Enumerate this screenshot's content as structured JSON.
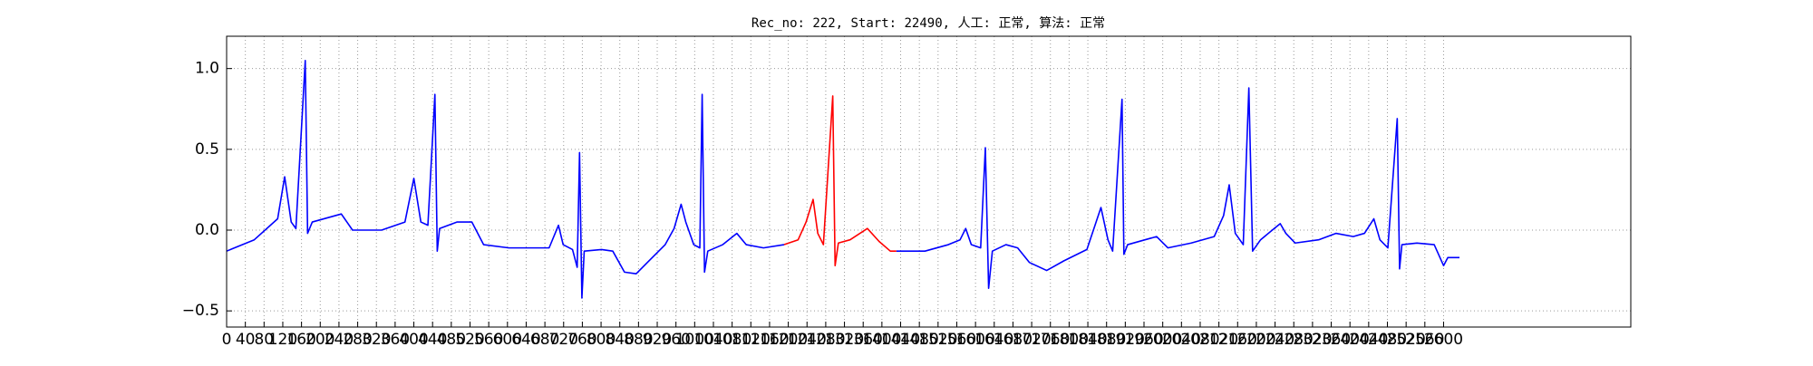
{
  "chart_data": {
    "type": "line",
    "title": "Rec_no: 222, Start: 22490, 人工: 正常, 算法: 正常",
    "xlim": [
      0,
      3000
    ],
    "ylim": [
      -0.6,
      1.2
    ],
    "xticks": [
      0,
      40,
      80,
      120,
      160,
      200,
      240,
      280,
      320,
      360,
      400,
      440,
      480,
      520,
      560,
      600,
      640,
      680,
      720,
      760,
      800,
      840,
      880,
      920,
      960,
      1000,
      1040,
      1080,
      1120,
      1160,
      1200,
      1240,
      1280,
      1320,
      1360,
      1400,
      1440,
      1480,
      1520,
      1560,
      1600,
      1640,
      1680,
      1720,
      1760,
      1800,
      1840,
      1880,
      1920,
      1960,
      2000,
      2040,
      2080,
      2120,
      2160,
      2200,
      2240,
      2280,
      2320,
      2360,
      2400,
      2440,
      2480,
      2520,
      2560,
      2600
    ],
    "yticks": [
      {
        "value": -0.5,
        "label": "−0.5"
      },
      {
        "value": 0,
        "label": "0.0"
      },
      {
        "value": 0.5,
        "label": "0.5"
      },
      {
        "value": 1,
        "label": "1.0"
      }
    ],
    "grid": true,
    "series": [
      {
        "color": "#0000ff",
        "x": [
          0,
          59,
          109,
          124,
          138,
          148,
          168,
          173,
          183,
          245,
          269,
          331,
          381,
          400,
          415,
          430,
          445,
          450,
          455,
          492,
          524,
          549,
          603,
          689,
          709,
          719,
          739,
          749,
          754,
          759,
          764,
          801,
          825,
          850,
          875,
          899,
          937,
          956,
          971,
          981,
          998,
          1011,
          1016,
          1021,
          1028,
          1060,
          1090,
          1110,
          1147,
          1191
        ],
        "values": [
          -0.13,
          -0.06,
          0.07,
          0.33,
          0.05,
          0.01,
          1.05,
          -0.02,
          0.05,
          0.1,
          0,
          0,
          0.05,
          0.32,
          0.05,
          0.03,
          0.84,
          -0.13,
          0.01,
          0.05,
          0.05,
          -0.09,
          -0.11,
          -0.11,
          0.03,
          -0.09,
          -0.12,
          -0.23,
          0.48,
          -0.42,
          -0.13,
          -0.12,
          -0.13,
          -0.26,
          -0.27,
          -0.2,
          -0.09,
          0.01,
          0.16,
          0.05,
          -0.09,
          -0.11,
          0.84,
          -0.26,
          -0.13,
          -0.09,
          -0.02,
          -0.09,
          -0.11,
          -0.09
        ]
      },
      {
        "color": "#ff0000",
        "x": [
          1191,
          1221,
          1238,
          1253,
          1263,
          1275,
          1295,
          1300,
          1307,
          1332,
          1369,
          1394,
          1418,
          1431
        ],
        "values": [
          -0.09,
          -0.06,
          0.05,
          0.19,
          -0.02,
          -0.09,
          0.83,
          -0.22,
          -0.08,
          -0.06,
          0.01,
          -0.07,
          -0.13,
          -0.13
        ]
      },
      {
        "color": "#0000ff",
        "x": [
          1431,
          1492,
          1542,
          1567,
          1579,
          1591,
          1611,
          1621,
          1628,
          1636,
          1665,
          1690,
          1715,
          1752,
          1789,
          1838,
          1853,
          1868,
          1883,
          1893,
          1913,
          1917,
          1925,
          1962,
          1987,
          2011,
          2061,
          2110,
          2130,
          2142,
          2155,
          2172,
          2184,
          2192,
          2209,
          2234,
          2251,
          2263,
          2283,
          2333,
          2370,
          2407,
          2431,
          2451,
          2464,
          2481,
          2501,
          2506,
          2511,
          2543,
          2580,
          2600,
          2609,
          2634
        ],
        "values": [
          -0.13,
          -0.13,
          -0.09,
          -0.06,
          0.01,
          -0.09,
          -0.11,
          0.51,
          -0.36,
          -0.13,
          -0.09,
          -0.11,
          -0.2,
          -0.25,
          -0.19,
          -0.12,
          0.01,
          0.14,
          -0.06,
          -0.13,
          0.81,
          -0.15,
          -0.09,
          -0.06,
          -0.04,
          -0.11,
          -0.08,
          -0.04,
          0.09,
          0.28,
          -0.02,
          -0.09,
          0.88,
          -0.13,
          -0.06,
          0,
          0.04,
          -0.02,
          -0.08,
          -0.06,
          -0.02,
          -0.04,
          -0.02,
          0.07,
          -0.06,
          -0.11,
          0.69,
          -0.24,
          -0.09,
          -0.08,
          -0.09,
          -0.22,
          -0.17,
          -0.17
        ]
      }
    ]
  }
}
